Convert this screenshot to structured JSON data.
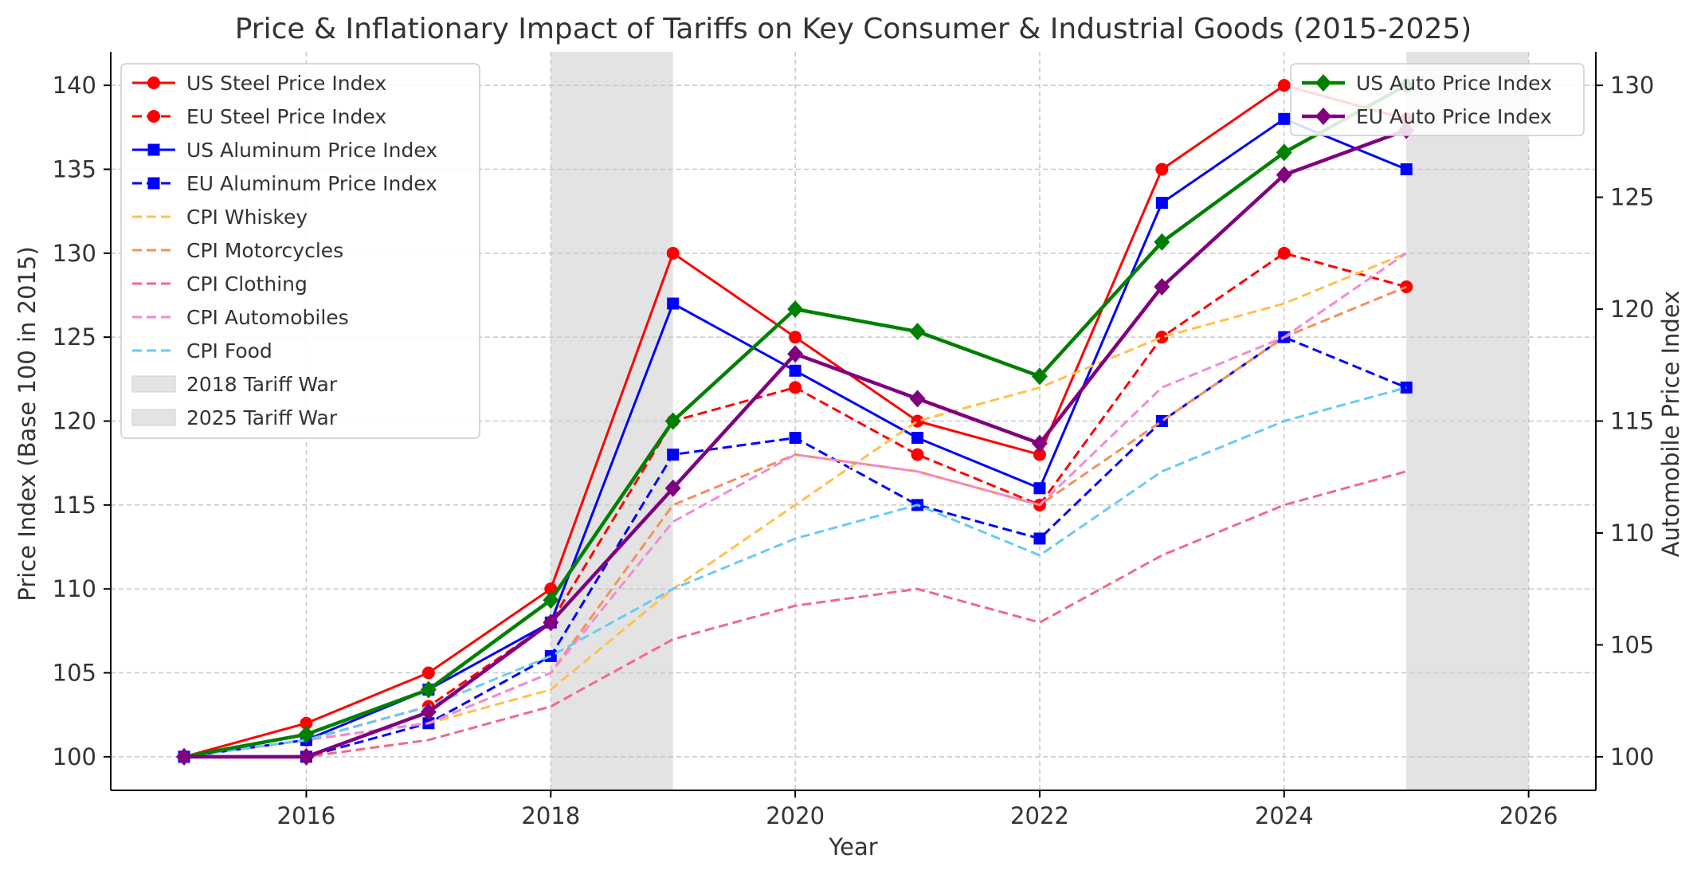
{
  "chart_data": {
    "type": "line",
    "title": "Price & Inflationary Impact of Tariffs on Key Consumer & Industrial Goods (2015-2025)",
    "xlabel": "Year",
    "ylabel": "Price Index (Base 100 in 2015)",
    "y2label": "Automobile Price Index",
    "xlim": [
      2014.4,
      2026.55
    ],
    "ylim": [
      98,
      142
    ],
    "y2lim": [
      98.5,
      131.5
    ],
    "x_ticks": [
      2016,
      2018,
      2020,
      2022,
      2024,
      2026
    ],
    "y_ticks": [
      100,
      105,
      110,
      115,
      120,
      125,
      130,
      135,
      140
    ],
    "y2_ticks": [
      100,
      105,
      110,
      115,
      120,
      125,
      130
    ],
    "grid": true,
    "x": [
      2015,
      2016,
      2017,
      2018,
      2019,
      2020,
      2021,
      2022,
      2023,
      2024,
      2025
    ],
    "shaded_regions": [
      {
        "name": "2018 Tariff War",
        "start": 2018,
        "end": 2019,
        "color": "#e3e3e3"
      },
      {
        "name": "2025 Tariff War",
        "start": 2025,
        "end": 2026,
        "color": "#e3e3e3"
      }
    ],
    "series": [
      {
        "name": "US Steel Price Index",
        "axis": "left",
        "color": "#ff0000",
        "dash": "solid",
        "marker": "circle",
        "width": 3,
        "values": [
          100,
          102,
          105,
          110,
          130,
          125,
          120,
          118,
          135,
          140,
          138
        ]
      },
      {
        "name": "EU Steel Price Index",
        "axis": "left",
        "color": "#ff0000",
        "dash": "dashed",
        "marker": "circle",
        "width": 3,
        "values": [
          100,
          101,
          103,
          108,
          120,
          122,
          118,
          115,
          125,
          130,
          128
        ]
      },
      {
        "name": "US Aluminum Price Index",
        "axis": "left",
        "color": "#0000ff",
        "dash": "solid",
        "marker": "square",
        "width": 3,
        "values": [
          100,
          101,
          104,
          108,
          127,
          123,
          119,
          116,
          133,
          138,
          135
        ]
      },
      {
        "name": "EU Aluminum Price Index",
        "axis": "left",
        "color": "#0000ff",
        "dash": "dashed",
        "marker": "square",
        "width": 3,
        "values": [
          100,
          100,
          102,
          106,
          118,
          119,
          115,
          113,
          120,
          125,
          122
        ]
      },
      {
        "name": "CPI Whiskey",
        "axis": "left",
        "color": "#ffc04d",
        "dash": "dashed",
        "marker": "none",
        "width": 3,
        "values": [
          100,
          101,
          102,
          104,
          110,
          115,
          120,
          122,
          125,
          127,
          130
        ]
      },
      {
        "name": "CPI Motorcycles",
        "axis": "left",
        "color": "#f4905a",
        "dash": "dashed",
        "marker": "none",
        "width": 3,
        "values": [
          100,
          101,
          102,
          105,
          115,
          118,
          117,
          115,
          120,
          125,
          128
        ]
      },
      {
        "name": "CPI Clothing",
        "axis": "left",
        "color": "#f06a86",
        "dash": "dashed",
        "marker": "none",
        "width": 3,
        "values": [
          100,
          100,
          101,
          103,
          107,
          109,
          110,
          108,
          112,
          115,
          117
        ]
      },
      {
        "name": "CPI Automobiles",
        "axis": "left",
        "color": "#f28ad6",
        "dash": "dashed",
        "marker": "none",
        "width": 3,
        "values": [
          100,
          101,
          102,
          105,
          114,
          118,
          117,
          115,
          122,
          125,
          130
        ]
      },
      {
        "name": "CPI Food",
        "axis": "left",
        "color": "#66ccf2",
        "dash": "dashed",
        "marker": "none",
        "width": 3,
        "values": [
          100,
          101,
          103,
          106,
          110,
          113,
          115,
          112,
          117,
          120,
          122
        ]
      },
      {
        "name": "US Auto Price Index",
        "axis": "right",
        "color": "#008000",
        "dash": "solid",
        "marker": "diamond",
        "width": 4.5,
        "values": [
          100,
          101,
          103,
          107,
          115,
          120,
          119,
          117,
          123,
          127,
          130
        ]
      },
      {
        "name": "EU Auto Price Index",
        "axis": "right",
        "color": "#800080",
        "dash": "solid",
        "marker": "diamond",
        "width": 4.5,
        "values": [
          100,
          100,
          102,
          106,
          112,
          118,
          116,
          114,
          121,
          126,
          128
        ]
      }
    ],
    "legend_left": [
      "US Steel Price Index",
      "EU Steel Price Index",
      "US Aluminum Price Index",
      "EU Aluminum Price Index",
      "CPI Whiskey",
      "CPI Motorcycles",
      "CPI Clothing",
      "CPI Automobiles",
      "CPI Food",
      "2018 Tariff War",
      "2025 Tariff War"
    ],
    "legend_left_position": "top-left",
    "legend_right": [
      "US Auto Price Index",
      "EU Auto Price Index"
    ],
    "legend_right_position": "top-right"
  }
}
